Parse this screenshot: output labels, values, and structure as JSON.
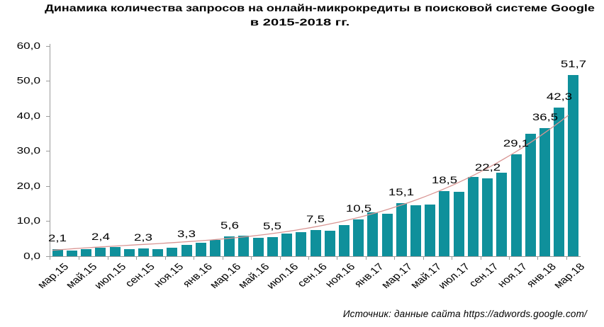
{
  "chart_data": {
    "type": "bar",
    "title_line1": "Динамика количества запросов на онлайн-микрокредиты в поисковой системе Google",
    "title_line2": "в 2015-2018 гг.",
    "ylim": [
      0,
      60
    ],
    "y_tick_labels": [
      "0,0",
      "10,0",
      "20,0",
      "30,0",
      "40,0",
      "50,0",
      "60,0"
    ],
    "x_tick_label_every": 2,
    "bars": [
      {
        "month": "мар.15",
        "value": 2.1,
        "label": "2,1"
      },
      {
        "month": "апр.15",
        "value": 1.6
      },
      {
        "month": "май.15",
        "value": 2.0
      },
      {
        "month": "июн.15",
        "value": 2.4,
        "label": "2,4"
      },
      {
        "month": "июл.15",
        "value": 2.6
      },
      {
        "month": "авг.15",
        "value": 2.1
      },
      {
        "month": "сен.15",
        "value": 2.3,
        "label": "2,3"
      },
      {
        "month": "окт.15",
        "value": 2.0
      },
      {
        "month": "ноя.15",
        "value": 2.5
      },
      {
        "month": "дек.15",
        "value": 3.3,
        "label": "3,3"
      },
      {
        "month": "янв.16",
        "value": 3.8
      },
      {
        "month": "фев.16",
        "value": 4.6
      },
      {
        "month": "мар.16",
        "value": 5.6,
        "label": "5,6"
      },
      {
        "month": "апр.16",
        "value": 5.8
      },
      {
        "month": "май.16",
        "value": 5.3
      },
      {
        "month": "июн.16",
        "value": 5.5,
        "label": "5,5"
      },
      {
        "month": "июл.16",
        "value": 6.4
      },
      {
        "month": "авг.16",
        "value": 6.9
      },
      {
        "month": "сен.16",
        "value": 7.5,
        "label": "7,5"
      },
      {
        "month": "окт.16",
        "value": 7.3
      },
      {
        "month": "ноя.16",
        "value": 8.8
      },
      {
        "month": "дек.16",
        "value": 10.5,
        "label": "10,5"
      },
      {
        "month": "янв.17",
        "value": 12.6
      },
      {
        "month": "фев.17",
        "value": 12.1
      },
      {
        "month": "мар.17",
        "value": 15.1,
        "label": "15,1"
      },
      {
        "month": "апр.17",
        "value": 14.6
      },
      {
        "month": "май.17",
        "value": 14.8
      },
      {
        "month": "июн.17",
        "value": 18.5,
        "label": "18,5"
      },
      {
        "month": "июл.17",
        "value": 18.4
      },
      {
        "month": "авг.17",
        "value": 22.5
      },
      {
        "month": "сен.17",
        "value": 22.2,
        "label": "22,2"
      },
      {
        "month": "окт.17",
        "value": 23.8
      },
      {
        "month": "ноя.17",
        "value": 29.1,
        "label": "29,1"
      },
      {
        "month": "дек.17",
        "value": 34.9
      },
      {
        "month": "янв.18",
        "value": 36.5,
        "label": "36,5"
      },
      {
        "month": "фев.18",
        "value": 42.3,
        "label": "42,3"
      },
      {
        "month": "мар.18",
        "value": 51.7,
        "label": "51,7"
      }
    ],
    "trendline": {
      "type": "polynomial3",
      "coeffs": [
        1.8,
        0.3223,
        -0.016675,
        0.0010611
      ]
    },
    "colors": {
      "bar": "#0F909B",
      "trend": "#D99694",
      "axis": "#9B9B9B",
      "text": "#000000"
    },
    "source": "Источник: данные сайта https://adwords.google.com/"
  }
}
